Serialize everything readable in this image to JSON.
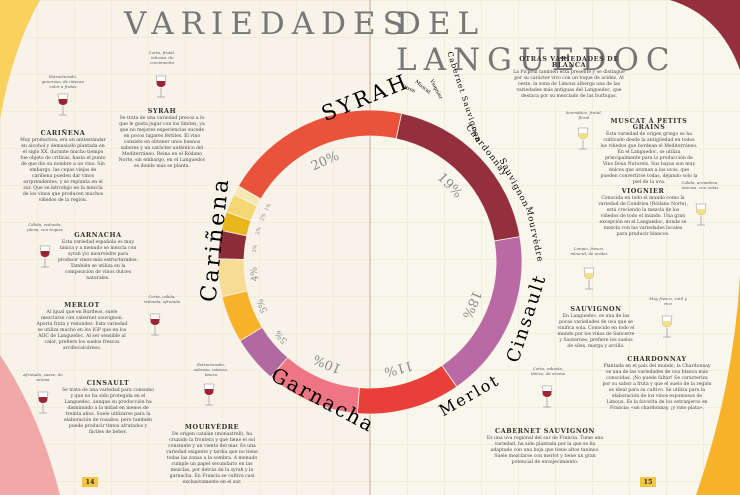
{
  "spread": {
    "title_left": "VARIEDADES",
    "title_right": "DEL LANGUEDOC",
    "page_left": "14",
    "page_right": "15"
  },
  "chart_data": {
    "type": "pie",
    "title": "",
    "categories": [
      "Syrah",
      "Cariñena",
      "Garnacha",
      "Merlot",
      "Cinsault",
      "Mourvèdre",
      "Sauvignon",
      "Chardonnay",
      "Cabernet Sauvignon",
      "Viognier",
      "Muscat",
      "Otros"
    ],
    "values": [
      20,
      19,
      18,
      11,
      10,
      5,
      5,
      4,
      3,
      2,
      2,
      1
    ],
    "labels": [
      "20%",
      "19%",
      "18%",
      "11%",
      "10%",
      "5%",
      "5%",
      "4%",
      "3%",
      "2%",
      "2%",
      "1%"
    ],
    "colors": [
      "#e9533b",
      "#94303e",
      "#b96aa4",
      "#e83f3a",
      "#ee7583",
      "#b06aa0",
      "#f6b228",
      "#f8dc96",
      "#8d2d39",
      "#e8b61d",
      "#f4d773",
      "#f7e7b3"
    ]
  },
  "blocks": {
    "carinena": {
      "title": "CARIÑENA",
      "text": "Muy productiva, era un antiestándar en alcohol y demasiado plantada en el siglo XX, durante mucho tiempo fue objeto de críticas, hasta el punto de que dio su nombre a un vino. Sin embargo, las cepas viejas de cariñena pueden dar vinos sorprendentes, y se replanta en el sur. Que se introdujo en la mezcla de los vinos que producen muchos viñedos de la región."
    },
    "syrah": {
      "title": "SYRAH",
      "text": "Se trata de una variedad precoz a lo que le gusta jugar con los límites, ya que no mejores experiencias sucede en pocos lugares fértiles. El vino consiste en obtener unos buenos sabores y un carácter auténtico del Mediterráneo. Reina en el Ródano Norte, sin embargo, en el Languedoc es donde más se planta."
    },
    "garnacha": {
      "title": "GARNACHA",
      "text": "Esta variedad española es muy tánica y a menudo se mezcla con syrah y/o mourvèdre para producir vinos más estructurados. También se utiliza en la composición de vinos dulces naturales."
    },
    "merlot": {
      "title": "MERLOT",
      "text": "Al igual que en Burdeos, suele mezclarse con cabernet sauvignon. Aporta fruta y redondez. Esta variedad se utiliza mucho en los IGP que en los AOC de Languedoc. Al ser sensible al calor, prefiere los suelos frescos arcillocalcáreos."
    },
    "cinsault": {
      "title": "CINSAULT",
      "text": "Se trata de una variedad para consumo y que no ha sido protegida en el Languedoc, aunque su producción ha disminuido a la mitad en menos de treinta años. Suele utilizarse para la elaboración de rosados, pero también puede producir tintos afrutados y fáciles de beber."
    },
    "mourvedre": {
      "title": "MOURVÈDRE",
      "text": "De origen catalán (monastrell), ha cruzado la frontera y que tiene el sol constante y un viento del mar. Es una variedad exigente y tardía que no tiene todas las zonas a la sombra. A menudo cumple un papel secundario en las mezclas, por detrás de la syrah y la garnacha. En Francia se cultiva casi exclusivamente en el sur."
    },
    "otras": {
      "title": "OTRAS VARIEDADES DE BLANCA",
      "text": "La Picpoul también está presente y se distingue por su carácter vivo con un toque de acidez. Al oeste, la zona de Limoux alberga una de las variedades más antiguas del Languedoc, que destaca por su mezclado de las burbujas."
    },
    "muscat": {
      "title": "MUSCAT À PETITS GRAINS",
      "text": "Esta variedad de origen griego se ha cultivado desde la antigüedad en todos los viñedos que bordean el Mediterráneo. En el Languedoc, se utiliza principalmente para la producción de Vins Doux Naturels. Sus bayas son muy dulces que aroman a las uvas, que pueden convertirse todas, dejando solo la piel de la uva."
    },
    "viognier": {
      "title": "VIOGNIER",
      "text": "Conocida en todo el mundo como la variedad de Condrieu (Ródano Norte), está creciendo la mezcla de los viñedos de todo el mundo. Una gran excepción en el Languedoc, donde se mezcla con las variedades locales para producir blancos."
    },
    "sauvignon": {
      "title": "SAUVIGNON",
      "text": "En Languedoc, es una de las pocas variedades de uva que se vinifica sola. Conocido en todo el mundo por los vinos de Sancerre y Sauternes, prefiere los suelos de sílex, marga y arcilla."
    },
    "chardonnay": {
      "title": "CHARDONNAY",
      "text": "Plantada en el país del mundo, la Chardonnay es una de las variedades de uva blanca más conocidas. ¡No puede faltar! Se caracteriza por su sabor a fruta y que el suelo de la región es ideal para su cultivo. Se utiliza para la elaboración de los vinos espumosos de Limoux. Es la favorita de los extranjeros en Francia: «un chardonnay, ¡y vino plata»."
    },
    "cabsauv": {
      "title": "CABERNET SAUVIGNON",
      "text": "Es una uva regional del sur de Francia. Tiene una variedad, ha sido plantada por la que se ha adaptado con una hoja que tiene altos taninos. Suele mezclarse con merlot y tiene un gran potencial de envejecimiento."
    }
  },
  "caps": {
    "carinena": "Estructurado, generoso, de intenso color a frutas",
    "syrah": "Corta, frutal, robusta, de crecimiento",
    "garnacha": "Cálida, redonda, plena, con toques",
    "merlot": "Corta, cálida, redonda, afrutada",
    "cinsault": "Afrutado, suave, de aroma",
    "mourvedre": "Estructurado, sabroso, intenso, tánico",
    "muscat": "Aromático, frutal, floral",
    "viognier": "Cálida, aromática, intensa, con notas",
    "sauvignon": "Limpio, fresco, mineral, de acidez",
    "chardonnay": "Muy fresco, sutil y rico",
    "cabsauv": "Corta, robusto, tánico, de aroma"
  }
}
